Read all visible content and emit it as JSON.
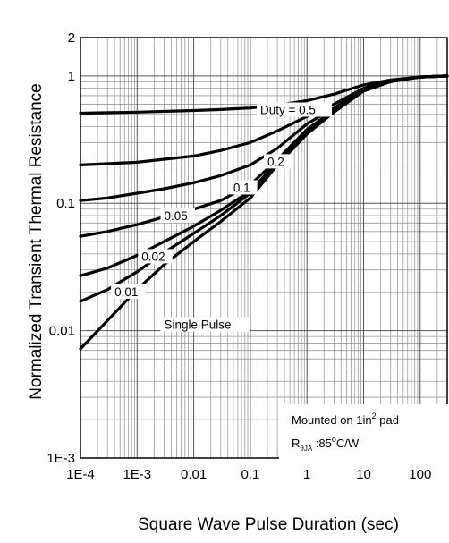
{
  "chart_data": {
    "type": "line",
    "xscale": "log",
    "yscale": "log",
    "xlabel": "Square Wave Pulse Duration (sec)",
    "ylabel": "Normalized Transient Thermal Resistance",
    "xlim": [
      0.0001,
      300
    ],
    "ylim": [
      0.001,
      2
    ],
    "grid": true,
    "x_ticks": [
      {
        "value": 0.0001,
        "label": "1E-4"
      },
      {
        "value": 0.001,
        "label": "1E-3"
      },
      {
        "value": 0.01,
        "label": "0.01"
      },
      {
        "value": 0.1,
        "label": "0.1"
      },
      {
        "value": 1,
        "label": "1"
      },
      {
        "value": 10,
        "label": "10"
      },
      {
        "value": 100,
        "label": "100"
      }
    ],
    "y_ticks": [
      {
        "value": 0.001,
        "label": "1E-3"
      },
      {
        "value": 0.01,
        "label": "0.01"
      },
      {
        "value": 0.1,
        "label": "0.1"
      },
      {
        "value": 1,
        "label": "1"
      },
      {
        "value": 2,
        "label": "2"
      }
    ],
    "series": [
      {
        "name": "Duty = 0.5",
        "x": [
          0.0001,
          0.001,
          0.01,
          0.03,
          0.1,
          0.3,
          1,
          3,
          10,
          30,
          100,
          300
        ],
        "y": [
          0.51,
          0.52,
          0.535,
          0.545,
          0.56,
          0.59,
          0.64,
          0.72,
          0.85,
          0.93,
          0.98,
          1.0
        ]
      },
      {
        "name": "0.2",
        "x": [
          0.0001,
          0.001,
          0.01,
          0.03,
          0.1,
          0.3,
          1,
          3,
          10,
          30,
          100,
          300
        ],
        "y": [
          0.2,
          0.21,
          0.235,
          0.26,
          0.3,
          0.37,
          0.48,
          0.6,
          0.8,
          0.92,
          0.98,
          1.0
        ]
      },
      {
        "name": "0.1",
        "x": [
          0.0001,
          0.0003,
          0.001,
          0.003,
          0.01,
          0.03,
          0.1,
          0.3,
          1,
          3,
          10,
          30,
          100,
          300
        ],
        "y": [
          0.105,
          0.11,
          0.12,
          0.13,
          0.145,
          0.165,
          0.2,
          0.27,
          0.42,
          0.56,
          0.78,
          0.91,
          0.98,
          1.0
        ]
      },
      {
        "name": "0.05",
        "x": [
          0.0001,
          0.0003,
          0.001,
          0.003,
          0.01,
          0.03,
          0.1,
          0.3,
          1,
          3,
          10,
          30,
          100,
          300
        ],
        "y": [
          0.055,
          0.06,
          0.068,
          0.078,
          0.09,
          0.105,
          0.14,
          0.22,
          0.38,
          0.54,
          0.77,
          0.91,
          0.98,
          1.0
        ]
      },
      {
        "name": "0.02",
        "x": [
          0.0001,
          0.0003,
          0.001,
          0.003,
          0.01,
          0.03,
          0.1,
          0.3,
          1,
          3,
          10,
          30,
          100,
          300
        ],
        "y": [
          0.027,
          0.031,
          0.039,
          0.05,
          0.066,
          0.088,
          0.125,
          0.21,
          0.37,
          0.54,
          0.77,
          0.91,
          0.98,
          1.0
        ]
      },
      {
        "name": "0.01",
        "x": [
          0.0001,
          0.0003,
          0.001,
          0.003,
          0.01,
          0.03,
          0.1,
          0.3,
          1,
          3,
          10,
          30,
          100,
          300
        ],
        "y": [
          0.017,
          0.021,
          0.029,
          0.041,
          0.058,
          0.08,
          0.12,
          0.205,
          0.36,
          0.53,
          0.77,
          0.91,
          0.98,
          1.0
        ]
      },
      {
        "name": "Single Pulse",
        "x": [
          0.0001,
          0.0003,
          0.001,
          0.003,
          0.01,
          0.03,
          0.1,
          0.3,
          1,
          3,
          10,
          30,
          100,
          300
        ],
        "y": [
          0.0072,
          0.012,
          0.021,
          0.033,
          0.05,
          0.072,
          0.11,
          0.2,
          0.35,
          0.52,
          0.76,
          0.9,
          0.98,
          1.0
        ]
      }
    ],
    "curve_labels": [
      "Duty = 0.5",
      "0.2",
      "0.1",
      "0.05",
      "0.02",
      "0.01",
      "Single Pulse"
    ],
    "annotation": {
      "line1_prefix": "Mounted on 1in",
      "line1_sup": "2",
      "line1_suffix": " pad",
      "line2_r": "R",
      "line2_sub": "θJA",
      "line2_mid": " :85",
      "line2_sup": "o",
      "line2_suffix": "C/W"
    }
  }
}
